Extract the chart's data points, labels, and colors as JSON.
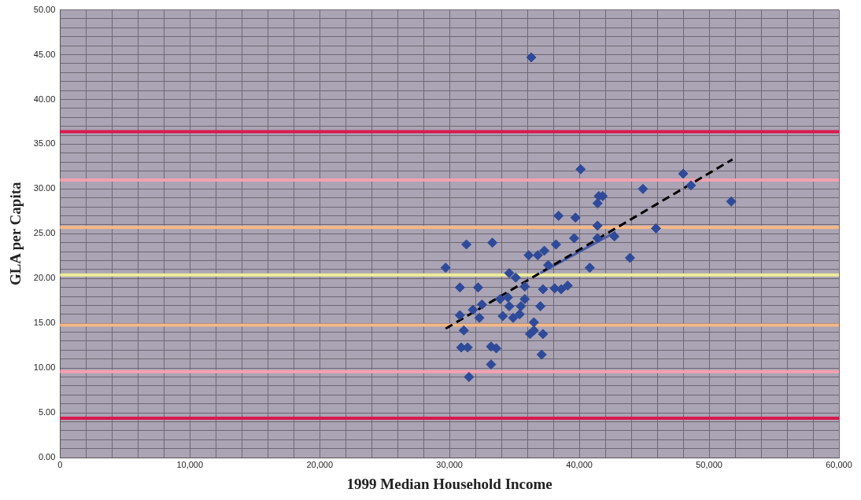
{
  "chart_data": {
    "type": "scatter",
    "xlabel": "1999 Median Household Income",
    "ylabel": "GLA per Capita",
    "xlim": [
      0,
      60000
    ],
    "ylim": [
      0,
      50
    ],
    "xticks": [
      {
        "value": 0,
        "label": "0"
      },
      {
        "value": 2000,
        "label": null
      },
      {
        "value": 4000,
        "label": null
      },
      {
        "value": 6000,
        "label": null
      },
      {
        "value": 8000,
        "label": null
      },
      {
        "value": 10000,
        "label": "10,000"
      },
      {
        "value": 12000,
        "label": null
      },
      {
        "value": 14000,
        "label": null
      },
      {
        "value": 16000,
        "label": null
      },
      {
        "value": 18000,
        "label": null
      },
      {
        "value": 20000,
        "label": "20,000"
      },
      {
        "value": 22000,
        "label": null
      },
      {
        "value": 24000,
        "label": null
      },
      {
        "value": 26000,
        "label": null
      },
      {
        "value": 28000,
        "label": null
      },
      {
        "value": 30000,
        "label": "30,000"
      },
      {
        "value": 32000,
        "label": null
      },
      {
        "value": 34000,
        "label": null
      },
      {
        "value": 36000,
        "label": null
      },
      {
        "value": 38000,
        "label": null
      },
      {
        "value": 40000,
        "label": "40,000"
      },
      {
        "value": 42000,
        "label": null
      },
      {
        "value": 44000,
        "label": null
      },
      {
        "value": 46000,
        "label": null
      },
      {
        "value": 48000,
        "label": null
      },
      {
        "value": 50000,
        "label": "50,000"
      },
      {
        "value": 52000,
        "label": null
      },
      {
        "value": 54000,
        "label": null
      },
      {
        "value": 56000,
        "label": null
      },
      {
        "value": 58000,
        "label": null
      },
      {
        "value": 60000,
        "label": "60,000"
      }
    ],
    "yticks": [
      {
        "value": 0,
        "label": "0.00"
      },
      {
        "value": 1,
        "label": null
      },
      {
        "value": 2,
        "label": null
      },
      {
        "value": 3,
        "label": null
      },
      {
        "value": 4,
        "label": null
      },
      {
        "value": 5,
        "label": "5.00"
      },
      {
        "value": 6,
        "label": null
      },
      {
        "value": 7,
        "label": null
      },
      {
        "value": 8,
        "label": null
      },
      {
        "value": 9,
        "label": null
      },
      {
        "value": 10,
        "label": "10.00"
      },
      {
        "value": 11,
        "label": null
      },
      {
        "value": 12,
        "label": null
      },
      {
        "value": 13,
        "label": null
      },
      {
        "value": 14,
        "label": null
      },
      {
        "value": 15,
        "label": "15.00"
      },
      {
        "value": 16,
        "label": null
      },
      {
        "value": 17,
        "label": null
      },
      {
        "value": 18,
        "label": null
      },
      {
        "value": 19,
        "label": null
      },
      {
        "value": 20,
        "label": "20.00"
      },
      {
        "value": 21,
        "label": null
      },
      {
        "value": 22,
        "label": null
      },
      {
        "value": 23,
        "label": null
      },
      {
        "value": 24,
        "label": null
      },
      {
        "value": 25,
        "label": "25.00"
      },
      {
        "value": 26,
        "label": null
      },
      {
        "value": 27,
        "label": null
      },
      {
        "value": 28,
        "label": null
      },
      {
        "value": 29,
        "label": null
      },
      {
        "value": 30,
        "label": "30.00"
      },
      {
        "value": 31,
        "label": null
      },
      {
        "value": 32,
        "label": null
      },
      {
        "value": 33,
        "label": null
      },
      {
        "value": 34,
        "label": null
      },
      {
        "value": 35,
        "label": "35.00"
      },
      {
        "value": 36,
        "label": null
      },
      {
        "value": 37,
        "label": null
      },
      {
        "value": 38,
        "label": null
      },
      {
        "value": 39,
        "label": null
      },
      {
        "value": 40,
        "label": "40.00"
      },
      {
        "value": 41,
        "label": null
      },
      {
        "value": 42,
        "label": null
      },
      {
        "value": 43,
        "label": null
      },
      {
        "value": 44,
        "label": null
      },
      {
        "value": 45,
        "label": "45.00"
      },
      {
        "value": 46,
        "label": null
      },
      {
        "value": 47,
        "label": null
      },
      {
        "value": 48,
        "label": null
      },
      {
        "value": 49,
        "label": null
      },
      {
        "value": 50,
        "label": "50.00"
      }
    ],
    "grid": true,
    "legend": false,
    "marker": "diamond",
    "ref_lines": [
      {
        "axis": "y",
        "value": 36.4,
        "color": "#d9194f"
      },
      {
        "axis": "y",
        "value": 31.0,
        "color": "#f4a0b0"
      },
      {
        "axis": "y",
        "value": 25.7,
        "color": "#f6b987"
      },
      {
        "axis": "y",
        "value": 20.4,
        "color": "#eeee99"
      },
      {
        "axis": "y",
        "value": 14.8,
        "color": "#f6b987"
      },
      {
        "axis": "y",
        "value": 9.6,
        "color": "#f4a0b0"
      },
      {
        "axis": "y",
        "value": 4.4,
        "color": "#d9194f"
      }
    ],
    "series": [
      {
        "color": "#2e4a99",
        "x": [
          29700,
          31300,
          33300,
          30800,
          32200,
          30800,
          31100,
          30900,
          31400,
          31500,
          33200,
          33600,
          33200,
          32500,
          31800,
          32300,
          34100,
          33900,
          34500,
          34600,
          35100,
          34600,
          35500,
          35400,
          34900,
          35800,
          35800,
          36500,
          36200,
          37200,
          37100,
          36500,
          37000,
          37200,
          36100,
          36800,
          37600,
          37300,
          38200,
          38100,
          38600,
          39100,
          38400,
          39700,
          40100,
          39600,
          40800,
          41400,
          41500,
          41400,
          41800,
          41400,
          44900,
          43900,
          45900,
          48000,
          48600,
          51700,
          36300,
          42700
        ],
        "values": [
          21.2,
          23.8,
          24.0,
          19.0,
          19.0,
          15.9,
          14.2,
          12.3,
          12.3,
          9.0,
          12.4,
          12.2,
          10.4,
          17.1,
          16.5,
          15.6,
          15.8,
          17.7,
          17.9,
          20.6,
          20.1,
          16.9,
          16.9,
          16.0,
          15.6,
          17.7,
          19.1,
          15.1,
          13.8,
          13.8,
          11.5,
          14.2,
          16.9,
          18.8,
          22.6,
          22.6,
          21.5,
          23.1,
          23.8,
          18.9,
          18.8,
          19.2,
          27.0,
          26.8,
          32.2,
          24.5,
          21.2,
          25.9,
          29.2,
          28.4,
          29.2,
          24.5,
          30.0,
          22.3,
          25.6,
          31.7,
          30.4,
          28.6,
          44.7,
          24.7
        ]
      },
      {
        "type": "line",
        "color": "#000000",
        "line_style": "dashed",
        "marker": "none",
        "x": [
          29700,
          51800
        ],
        "values": [
          14.4,
          33.3
        ]
      },
      {
        "type": "line",
        "color": "#4a5aa8",
        "line_style": "solid",
        "marker": "none",
        "x": [
          37000,
          42800
        ],
        "values": [
          20.6,
          25.2
        ]
      }
    ]
  }
}
